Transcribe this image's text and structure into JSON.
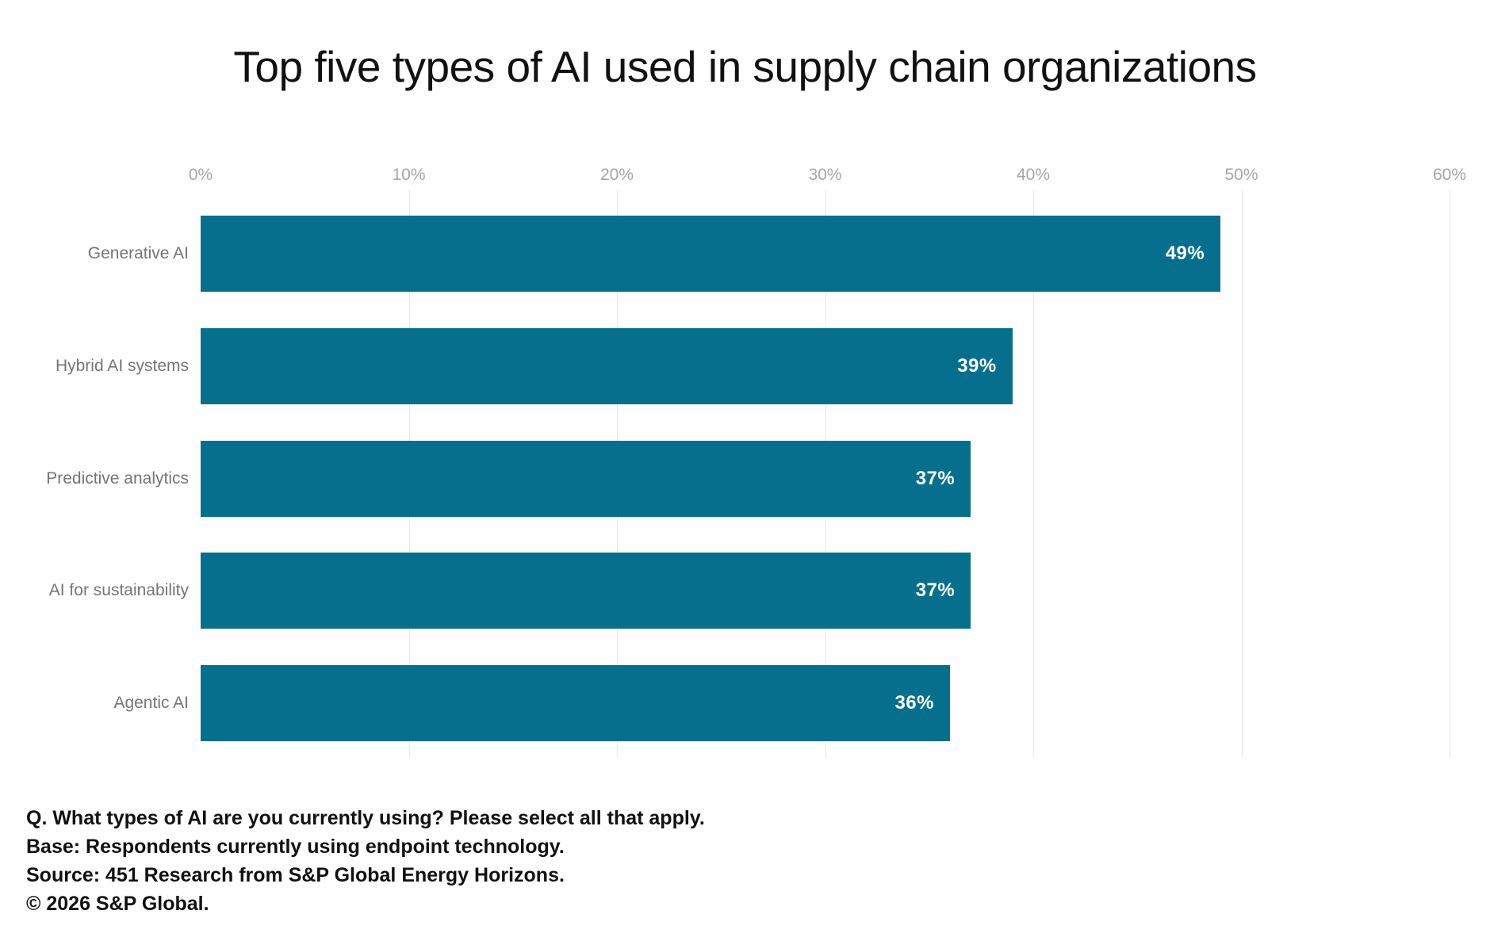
{
  "title": "Top five types of AI used in supply chain organizations",
  "chart_data": {
    "type": "bar",
    "orientation": "horizontal",
    "title": "Top five types of AI used in supply chain organizations",
    "categories": [
      "Generative AI",
      "Hybrid AI systems",
      "Predictive analytics",
      "AI for sustainability",
      "Agentic AI"
    ],
    "values": [
      49,
      39,
      37,
      37,
      36
    ],
    "value_labels": [
      "49%",
      "39%",
      "37%",
      "37%",
      "36%"
    ],
    "xlabel": "",
    "ylabel": "",
    "xlim": [
      0,
      60
    ],
    "x_ticks": [
      0,
      10,
      20,
      30,
      40,
      50,
      60
    ],
    "x_tick_labels": [
      "0%",
      "10%",
      "20%",
      "30%",
      "40%",
      "50%",
      "60%"
    ],
    "grid": "vertical-only",
    "legend": "none",
    "value_labels_position": "inside-end"
  },
  "colors": {
    "bar": "#066f8d",
    "value_label": "#ffffff",
    "gridline": "#e9e9e9",
    "tick_label": "#a6a6a6",
    "category_label": "#757575",
    "text": "#111111",
    "background": "#ffffff"
  },
  "footer": {
    "lines": [
      "Q. What types of AI are you currently using? Please select all that apply.",
      "Base: Respondents currently using endpoint technology.",
      "Source: 451 Research from S&P Global Energy Horizons.",
      "© 2026 S&P Global."
    ]
  }
}
